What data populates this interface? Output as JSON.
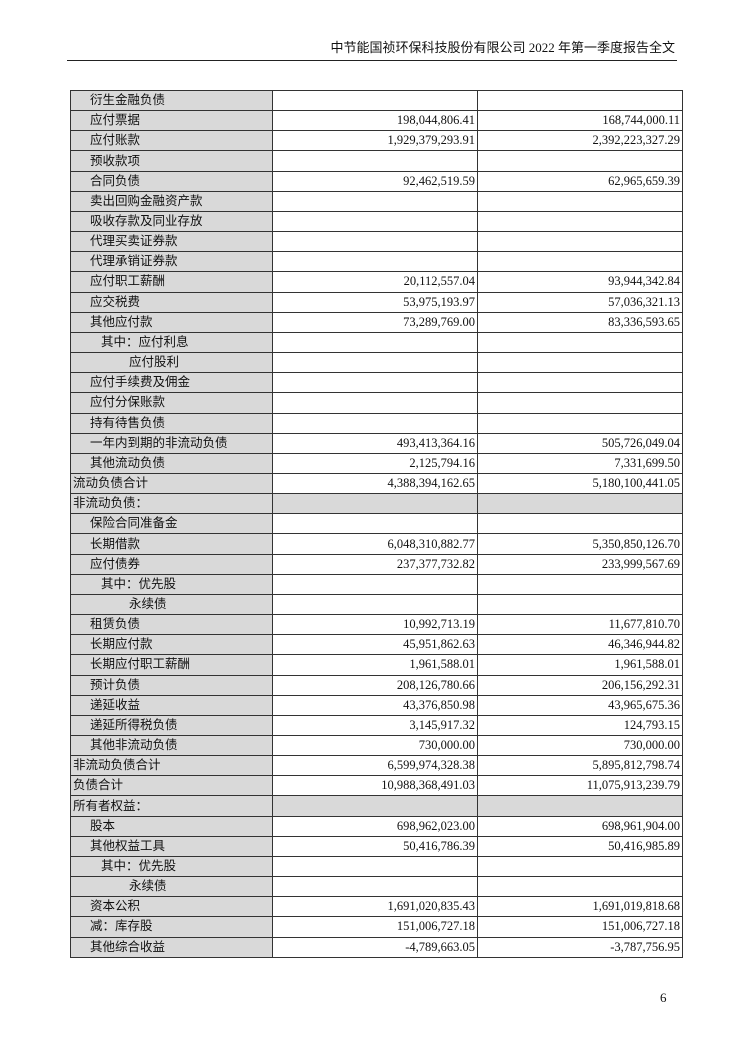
{
  "header": {
    "title": "中节能国祯环保科技股份有限公司 2022 年第一季度报告全文"
  },
  "rows": [
    {
      "label": "衍生金融负债",
      "level": 1,
      "v1": "",
      "v2": ""
    },
    {
      "label": "应付票据",
      "level": 1,
      "v1": "198,044,806.41",
      "v2": "168,744,000.11"
    },
    {
      "label": "应付账款",
      "level": 1,
      "v1": "1,929,379,293.91",
      "v2": "2,392,223,327.29"
    },
    {
      "label": "预收款项",
      "level": 1,
      "v1": "",
      "v2": ""
    },
    {
      "label": "合同负债",
      "level": 1,
      "v1": "92,462,519.59",
      "v2": "62,965,659.39"
    },
    {
      "label": "卖出回购金融资产款",
      "level": 1,
      "v1": "",
      "v2": ""
    },
    {
      "label": "吸收存款及同业存放",
      "level": 1,
      "v1": "",
      "v2": ""
    },
    {
      "label": "代理买卖证券款",
      "level": 1,
      "v1": "",
      "v2": ""
    },
    {
      "label": "代理承销证券款",
      "level": 1,
      "v1": "",
      "v2": ""
    },
    {
      "label": "应付职工薪酬",
      "level": 1,
      "v1": "20,112,557.04",
      "v2": "93,944,342.84"
    },
    {
      "label": "应交税费",
      "level": 1,
      "v1": "53,975,193.97",
      "v2": "57,036,321.13"
    },
    {
      "label": "其他应付款",
      "level": 1,
      "v1": "73,289,769.00",
      "v2": "83,336,593.65"
    },
    {
      "label": "其中：应付利息",
      "level": 2,
      "v1": "",
      "v2": ""
    },
    {
      "label": "应付股利",
      "level": 3,
      "v1": "",
      "v2": ""
    },
    {
      "label": "应付手续费及佣金",
      "level": 1,
      "v1": "",
      "v2": ""
    },
    {
      "label": "应付分保账款",
      "level": 1,
      "v1": "",
      "v2": ""
    },
    {
      "label": "持有待售负债",
      "level": 1,
      "v1": "",
      "v2": ""
    },
    {
      "label": "一年内到期的非流动负债",
      "level": 1,
      "v1": "493,413,364.16",
      "v2": "505,726,049.04"
    },
    {
      "label": "其他流动负债",
      "level": 1,
      "v1": "2,125,794.16",
      "v2": "7,331,699.50"
    },
    {
      "label": "流动负债合计",
      "level": 0,
      "v1": "4,388,394,162.65",
      "v2": "5,180,100,441.05"
    },
    {
      "label": "非流动负债：",
      "level": 0,
      "section": true,
      "v1": "",
      "v2": ""
    },
    {
      "label": "保险合同准备金",
      "level": 1,
      "v1": "",
      "v2": ""
    },
    {
      "label": "长期借款",
      "level": 1,
      "v1": "6,048,310,882.77",
      "v2": "5,350,850,126.70"
    },
    {
      "label": "应付债券",
      "level": 1,
      "v1": "237,377,732.82",
      "v2": "233,999,567.69"
    },
    {
      "label": "其中：优先股",
      "level": 2,
      "v1": "",
      "v2": ""
    },
    {
      "label": "永续债",
      "level": 3,
      "v1": "",
      "v2": ""
    },
    {
      "label": "租赁负债",
      "level": 1,
      "v1": "10,992,713.19",
      "v2": "11,677,810.70"
    },
    {
      "label": "长期应付款",
      "level": 1,
      "v1": "45,951,862.63",
      "v2": "46,346,944.82"
    },
    {
      "label": "长期应付职工薪酬",
      "level": 1,
      "v1": "1,961,588.01",
      "v2": "1,961,588.01"
    },
    {
      "label": "预计负债",
      "level": 1,
      "v1": "208,126,780.66",
      "v2": "206,156,292.31"
    },
    {
      "label": "递延收益",
      "level": 1,
      "v1": "43,376,850.98",
      "v2": "43,965,675.36"
    },
    {
      "label": "递延所得税负债",
      "level": 1,
      "v1": "3,145,917.32",
      "v2": "124,793.15"
    },
    {
      "label": "其他非流动负债",
      "level": 1,
      "v1": "730,000.00",
      "v2": "730,000.00"
    },
    {
      "label": "非流动负债合计",
      "level": 0,
      "v1": "6,599,974,328.38",
      "v2": "5,895,812,798.74"
    },
    {
      "label": "负债合计",
      "level": 0,
      "v1": "10,988,368,491.03",
      "v2": "11,075,913,239.79"
    },
    {
      "label": "所有者权益：",
      "level": 0,
      "section": true,
      "v1": "",
      "v2": ""
    },
    {
      "label": "股本",
      "level": 1,
      "v1": "698,962,023.00",
      "v2": "698,961,904.00"
    },
    {
      "label": "其他权益工具",
      "level": 1,
      "v1": "50,416,786.39",
      "v2": "50,416,985.89"
    },
    {
      "label": "其中：优先股",
      "level": 2,
      "v1": "",
      "v2": ""
    },
    {
      "label": "永续债",
      "level": 3,
      "v1": "",
      "v2": ""
    },
    {
      "label": "资本公积",
      "level": 1,
      "v1": "1,691,020,835.43",
      "v2": "1,691,019,818.68"
    },
    {
      "label": "减：库存股",
      "level": 1,
      "v1": "151,006,727.18",
      "v2": "151,006,727.18"
    },
    {
      "label": "其他综合收益",
      "level": 1,
      "v1": "-4,789,663.05",
      "v2": "-3,787,756.95"
    }
  ],
  "footer": {
    "page_number": "6"
  }
}
